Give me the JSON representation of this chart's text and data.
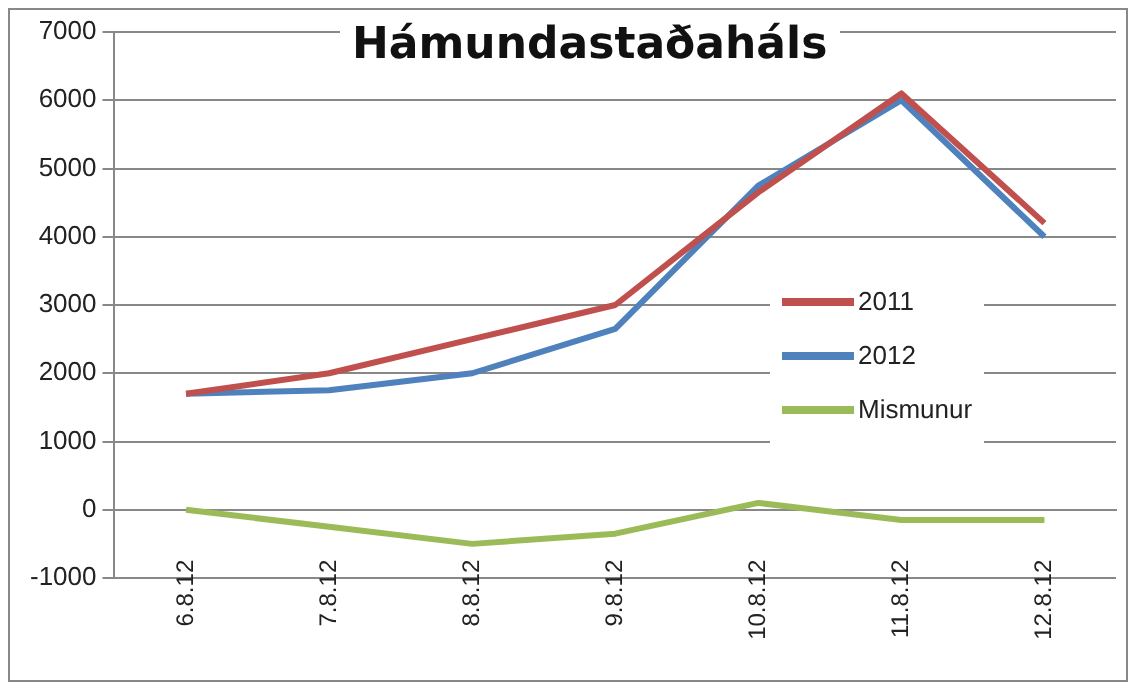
{
  "chart_data": {
    "type": "line",
    "title": "Hámundastaðaháls",
    "categories": [
      "6.8.12",
      "7.8.12",
      "8.8.12",
      "9.8.12",
      "10.8.12",
      "11.8.12",
      "12.8.12"
    ],
    "series": [
      {
        "name": "2011",
        "color": "#c0504d",
        "values": [
          1700,
          2000,
          2500,
          3000,
          4650,
          6100,
          4200
        ]
      },
      {
        "name": "2012",
        "color": "#4f81bd",
        "values": [
          1700,
          1750,
          2000,
          2650,
          4750,
          6000,
          4000
        ]
      },
      {
        "name": "Mismunur",
        "color": "#9bbb59",
        "values": [
          0,
          -250,
          -500,
          -350,
          100,
          -150,
          -150
        ]
      }
    ],
    "ylim": [
      -1000,
      7000
    ],
    "yticks": [
      -1000,
      0,
      1000,
      2000,
      3000,
      4000,
      5000,
      6000,
      7000
    ],
    "grid": "y",
    "legend": "right",
    "marker": "none",
    "line_style": "solid"
  }
}
